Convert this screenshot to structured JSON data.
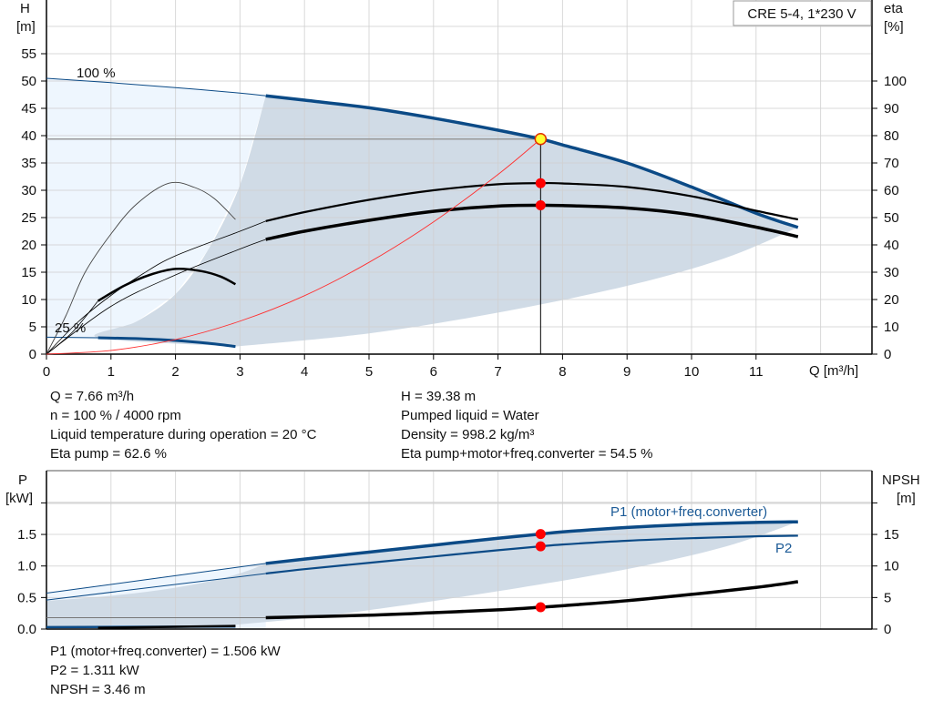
{
  "title_box": "CRE 5-4, 1*230 V",
  "colors": {
    "pump_curve": "#0b4a86",
    "eta_curve": "#000000",
    "system_curve": "#ff3030",
    "shade_dark": "#d0dbe6",
    "shade_light": "#eef6fe",
    "grid": "#d0d0d0",
    "op_point": "#ff0000",
    "op_point_main_fill": "#ffff33"
  },
  "chart_data": [
    {
      "type": "line",
      "xlabel": "Q [m³/h]",
      "ylabel": "H",
      "ylabel_unit": "[m]",
      "y2label": "eta",
      "y2label_unit": "[%]",
      "xlim": [
        0,
        12.8
      ],
      "ylim": [
        0,
        65
      ],
      "y2lim": [
        0,
        130
      ],
      "xticks": [
        "0",
        "1",
        "2",
        "3",
        "4",
        "5",
        "6",
        "7",
        "8",
        "9",
        "10",
        "11"
      ],
      "yticks": [
        "0",
        "5",
        "10",
        "15",
        "20",
        "25",
        "30",
        "35",
        "40",
        "45",
        "50",
        "55"
      ],
      "y2ticks": [
        "0",
        "10",
        "20",
        "30",
        "40",
        "50",
        "60",
        "70",
        "80",
        "90",
        "100"
      ],
      "grid": true,
      "annotations": {
        "speed_max": "100 %",
        "speed_min": "25 %"
      },
      "series": [
        {
          "id": "H_100",
          "axis": "H",
          "points": [
            [
              0,
              50.5
            ],
            [
              1,
              49.7
            ],
            [
              2,
              48.8
            ],
            [
              3,
              47.8
            ],
            [
              3.4,
              47.3
            ],
            [
              4,
              46.5
            ],
            [
              5,
              45.1
            ],
            [
              6,
              43.2
            ],
            [
              7,
              41.0
            ],
            [
              7.66,
              39.38
            ],
            [
              8,
              38.3
            ],
            [
              9,
              35.0
            ],
            [
              10,
              30.6
            ],
            [
              11,
              25.8
            ],
            [
              11.65,
              23.2
            ]
          ],
          "thin_until": 3.4
        },
        {
          "id": "H_25",
          "axis": "H",
          "points": [
            [
              0,
              3.1
            ],
            [
              0.8,
              3.0
            ],
            [
              1.5,
              2.8
            ],
            [
              2,
              2.5
            ],
            [
              2.5,
              2.0
            ],
            [
              2.93,
              1.4
            ]
          ],
          "thin_until": 0.8
        },
        {
          "id": "eta_pump_100",
          "axis": "eta",
          "points": [
            [
              0,
              0
            ],
            [
              0.5,
              12
            ],
            [
              1,
              21.5
            ],
            [
              1.5,
              29.5
            ],
            [
              2,
              36
            ],
            [
              3,
              45
            ],
            [
              3.4,
              48.7
            ],
            [
              4,
              52
            ],
            [
              5,
              56.5
            ],
            [
              6,
              60
            ],
            [
              7,
              62.2
            ],
            [
              7.66,
              62.6
            ],
            [
              8,
              62.5
            ],
            [
              9,
              61.2
            ],
            [
              10,
              57.8
            ],
            [
              11,
              52.5
            ],
            [
              11.65,
              49.3
            ]
          ],
          "thin_until": 3.4
        },
        {
          "id": "eta_total_100",
          "axis": "eta",
          "points": [
            [
              0,
              0
            ],
            [
              1,
              17.5
            ],
            [
              2,
              29
            ],
            [
              3,
              38.5
            ],
            [
              3.4,
              42
            ],
            [
              4,
              45
            ],
            [
              5,
              49
            ],
            [
              6,
              52.3
            ],
            [
              7,
              54.2
            ],
            [
              7.66,
              54.5
            ],
            [
              8,
              54.4
            ],
            [
              9,
              53.5
            ],
            [
              10,
              51
            ],
            [
              11,
              46.5
            ],
            [
              11.65,
              43
            ]
          ],
          "thin_until": 3.4
        },
        {
          "id": "eta_pump_25",
          "axis": "eta",
          "points": [
            [
              0,
              0
            ],
            [
              0.3,
              14
            ],
            [
              0.6,
              30
            ],
            [
              1,
              44
            ],
            [
              1.4,
              55
            ],
            [
              1.9,
              62.6
            ],
            [
              2.3,
              61
            ],
            [
              2.6,
              57
            ],
            [
              2.93,
              49.3
            ]
          ],
          "thin_until": 3
        },
        {
          "id": "eta_total_25",
          "axis": "eta",
          "points": [
            [
              0,
              0
            ],
            [
              0.4,
              8
            ],
            [
              0.8,
              19.5
            ],
            [
              1.2,
              25
            ],
            [
              1.6,
              29
            ],
            [
              2,
              31.2
            ],
            [
              2.4,
              30.4
            ],
            [
              2.7,
              28.4
            ],
            [
              2.93,
              25.6
            ]
          ],
          "thin_until": 0.8
        },
        {
          "id": "system_curve",
          "axis": "H",
          "points": [
            [
              0,
              0
            ],
            [
              1,
              0.67
            ],
            [
              2,
              2.68
            ],
            [
              3,
              6.04
            ],
            [
              4,
              10.7
            ],
            [
              5,
              16.8
            ],
            [
              6,
              24.2
            ],
            [
              7,
              32.9
            ],
            [
              7.66,
              39.38
            ]
          ]
        }
      ],
      "operating_region": {
        "upper": [
          [
            3.4,
            47.3
          ],
          [
            4,
            46.5
          ],
          [
            5,
            45.1
          ],
          [
            6,
            43.2
          ],
          [
            7,
            41.0
          ],
          [
            7.66,
            39.38
          ],
          [
            8,
            38.3
          ],
          [
            9,
            35.0
          ],
          [
            10,
            30.6
          ],
          [
            11,
            25.8
          ],
          [
            11.65,
            23.2
          ]
        ],
        "lower": [
          [
            11.65,
            23.2
          ],
          [
            10.5,
            17.5
          ],
          [
            9,
            12.5
          ],
          [
            7,
            7.6
          ],
          [
            5,
            3.8
          ],
          [
            2.93,
            1.4
          ]
        ],
        "left": [
          [
            2.93,
            1.4
          ],
          [
            0.8,
            3.0
          ],
          [
            1.4,
            6
          ],
          [
            2,
            11
          ],
          [
            2.5,
            19
          ],
          [
            3,
            31
          ],
          [
            3.4,
            47.3
          ]
        ]
      },
      "duty_point": {
        "Q": 7.66,
        "H": 39.38,
        "eta_pump": 62.6,
        "eta_total": 54.5
      }
    },
    {
      "type": "line",
      "xlim": [
        0,
        12.8
      ],
      "ylabel": "P",
      "ylabel_unit": "[kW]",
      "y2label": "NPSH",
      "y2label_unit": "[m]",
      "ylim": [
        0,
        2.5
      ],
      "y2lim": [
        0,
        25
      ],
      "yticks": [
        "0.0",
        "0.5",
        "1.0",
        "1.5"
      ],
      "y2ticks": [
        "0",
        "5",
        "10",
        "15"
      ],
      "grid": true,
      "series": [
        {
          "id": "P1",
          "name": "P1 (motor+freq.converter)",
          "axis": "P",
          "points": [
            [
              0,
              0.57
            ],
            [
              3.4,
              1.04
            ],
            [
              4,
              1.11
            ],
            [
              5,
              1.22
            ],
            [
              6,
              1.33
            ],
            [
              7,
              1.44
            ],
            [
              7.66,
              1.506
            ],
            [
              8,
              1.54
            ],
            [
              9,
              1.61
            ],
            [
              10,
              1.66
            ],
            [
              11,
              1.69
            ],
            [
              11.65,
              1.7
            ]
          ],
          "thin_until": 3.4
        },
        {
          "id": "P2",
          "name": "P2",
          "axis": "P",
          "points": [
            [
              0,
              0.46
            ],
            [
              3.4,
              0.88
            ],
            [
              4,
              0.95
            ],
            [
              5,
              1.05
            ],
            [
              6,
              1.15
            ],
            [
              7,
              1.25
            ],
            [
              7.66,
              1.311
            ],
            [
              8,
              1.34
            ],
            [
              9,
              1.4
            ],
            [
              10,
              1.44
            ],
            [
              11,
              1.47
            ],
            [
              11.65,
              1.48
            ]
          ],
          "thin_until": 3.4
        },
        {
          "id": "NPSH",
          "axis": "NPSH",
          "points": [
            [
              0,
              1.8
            ],
            [
              3.4,
              1.8
            ],
            [
              5,
              2.2
            ],
            [
              6,
              2.6
            ],
            [
              7,
              3.05
            ],
            [
              7.66,
              3.46
            ],
            [
              8,
              3.7
            ],
            [
              9,
              4.5
            ],
            [
              10,
              5.5
            ],
            [
              11,
              6.6
            ],
            [
              11.65,
              7.5
            ]
          ],
          "thin_until": 3.4
        },
        {
          "id": "P1_25",
          "axis": "P",
          "points": [
            [
              0,
              0.03
            ],
            [
              2.93,
              0.04
            ]
          ]
        },
        {
          "id": "NPSH_25",
          "axis": "P",
          "points": [
            [
              0.8,
              0.02
            ],
            [
              2.93,
              0.05
            ]
          ]
        }
      ],
      "operating_region": {
        "upper": [
          [
            3.4,
            1.04
          ],
          [
            5,
            1.22
          ],
          [
            7,
            1.44
          ],
          [
            9,
            1.61
          ],
          [
            11,
            1.69
          ],
          [
            11.65,
            1.7
          ]
        ],
        "lower": [
          [
            11.65,
            1.7
          ],
          [
            10.5,
            1.3
          ],
          [
            9,
            0.95
          ],
          [
            7,
            0.6
          ],
          [
            5,
            0.3
          ],
          [
            3.5,
            0.12
          ],
          [
            2,
            0.02
          ],
          [
            0,
            0.02
          ]
        ]
      },
      "duty_point": {
        "P1": 1.506,
        "P2": 1.311,
        "NPSH": 3.46
      }
    }
  ],
  "info": {
    "left": [
      "Q = 7.66 m³/h",
      "n = 100 % / 4000 rpm",
      "Liquid temperature during operation = 20 °C",
      "Eta pump = 62.6 %"
    ],
    "right": [
      "H = 39.38 m",
      "Pumped liquid = Water",
      "Density = 998.2 kg/m³",
      "Eta pump+motor+freq.converter = 54.5 %"
    ],
    "bottom": [
      "P1 (motor+freq.converter) = 1.506 kW",
      "P2 = 1.311 kW",
      "NPSH = 3.46 m"
    ]
  }
}
